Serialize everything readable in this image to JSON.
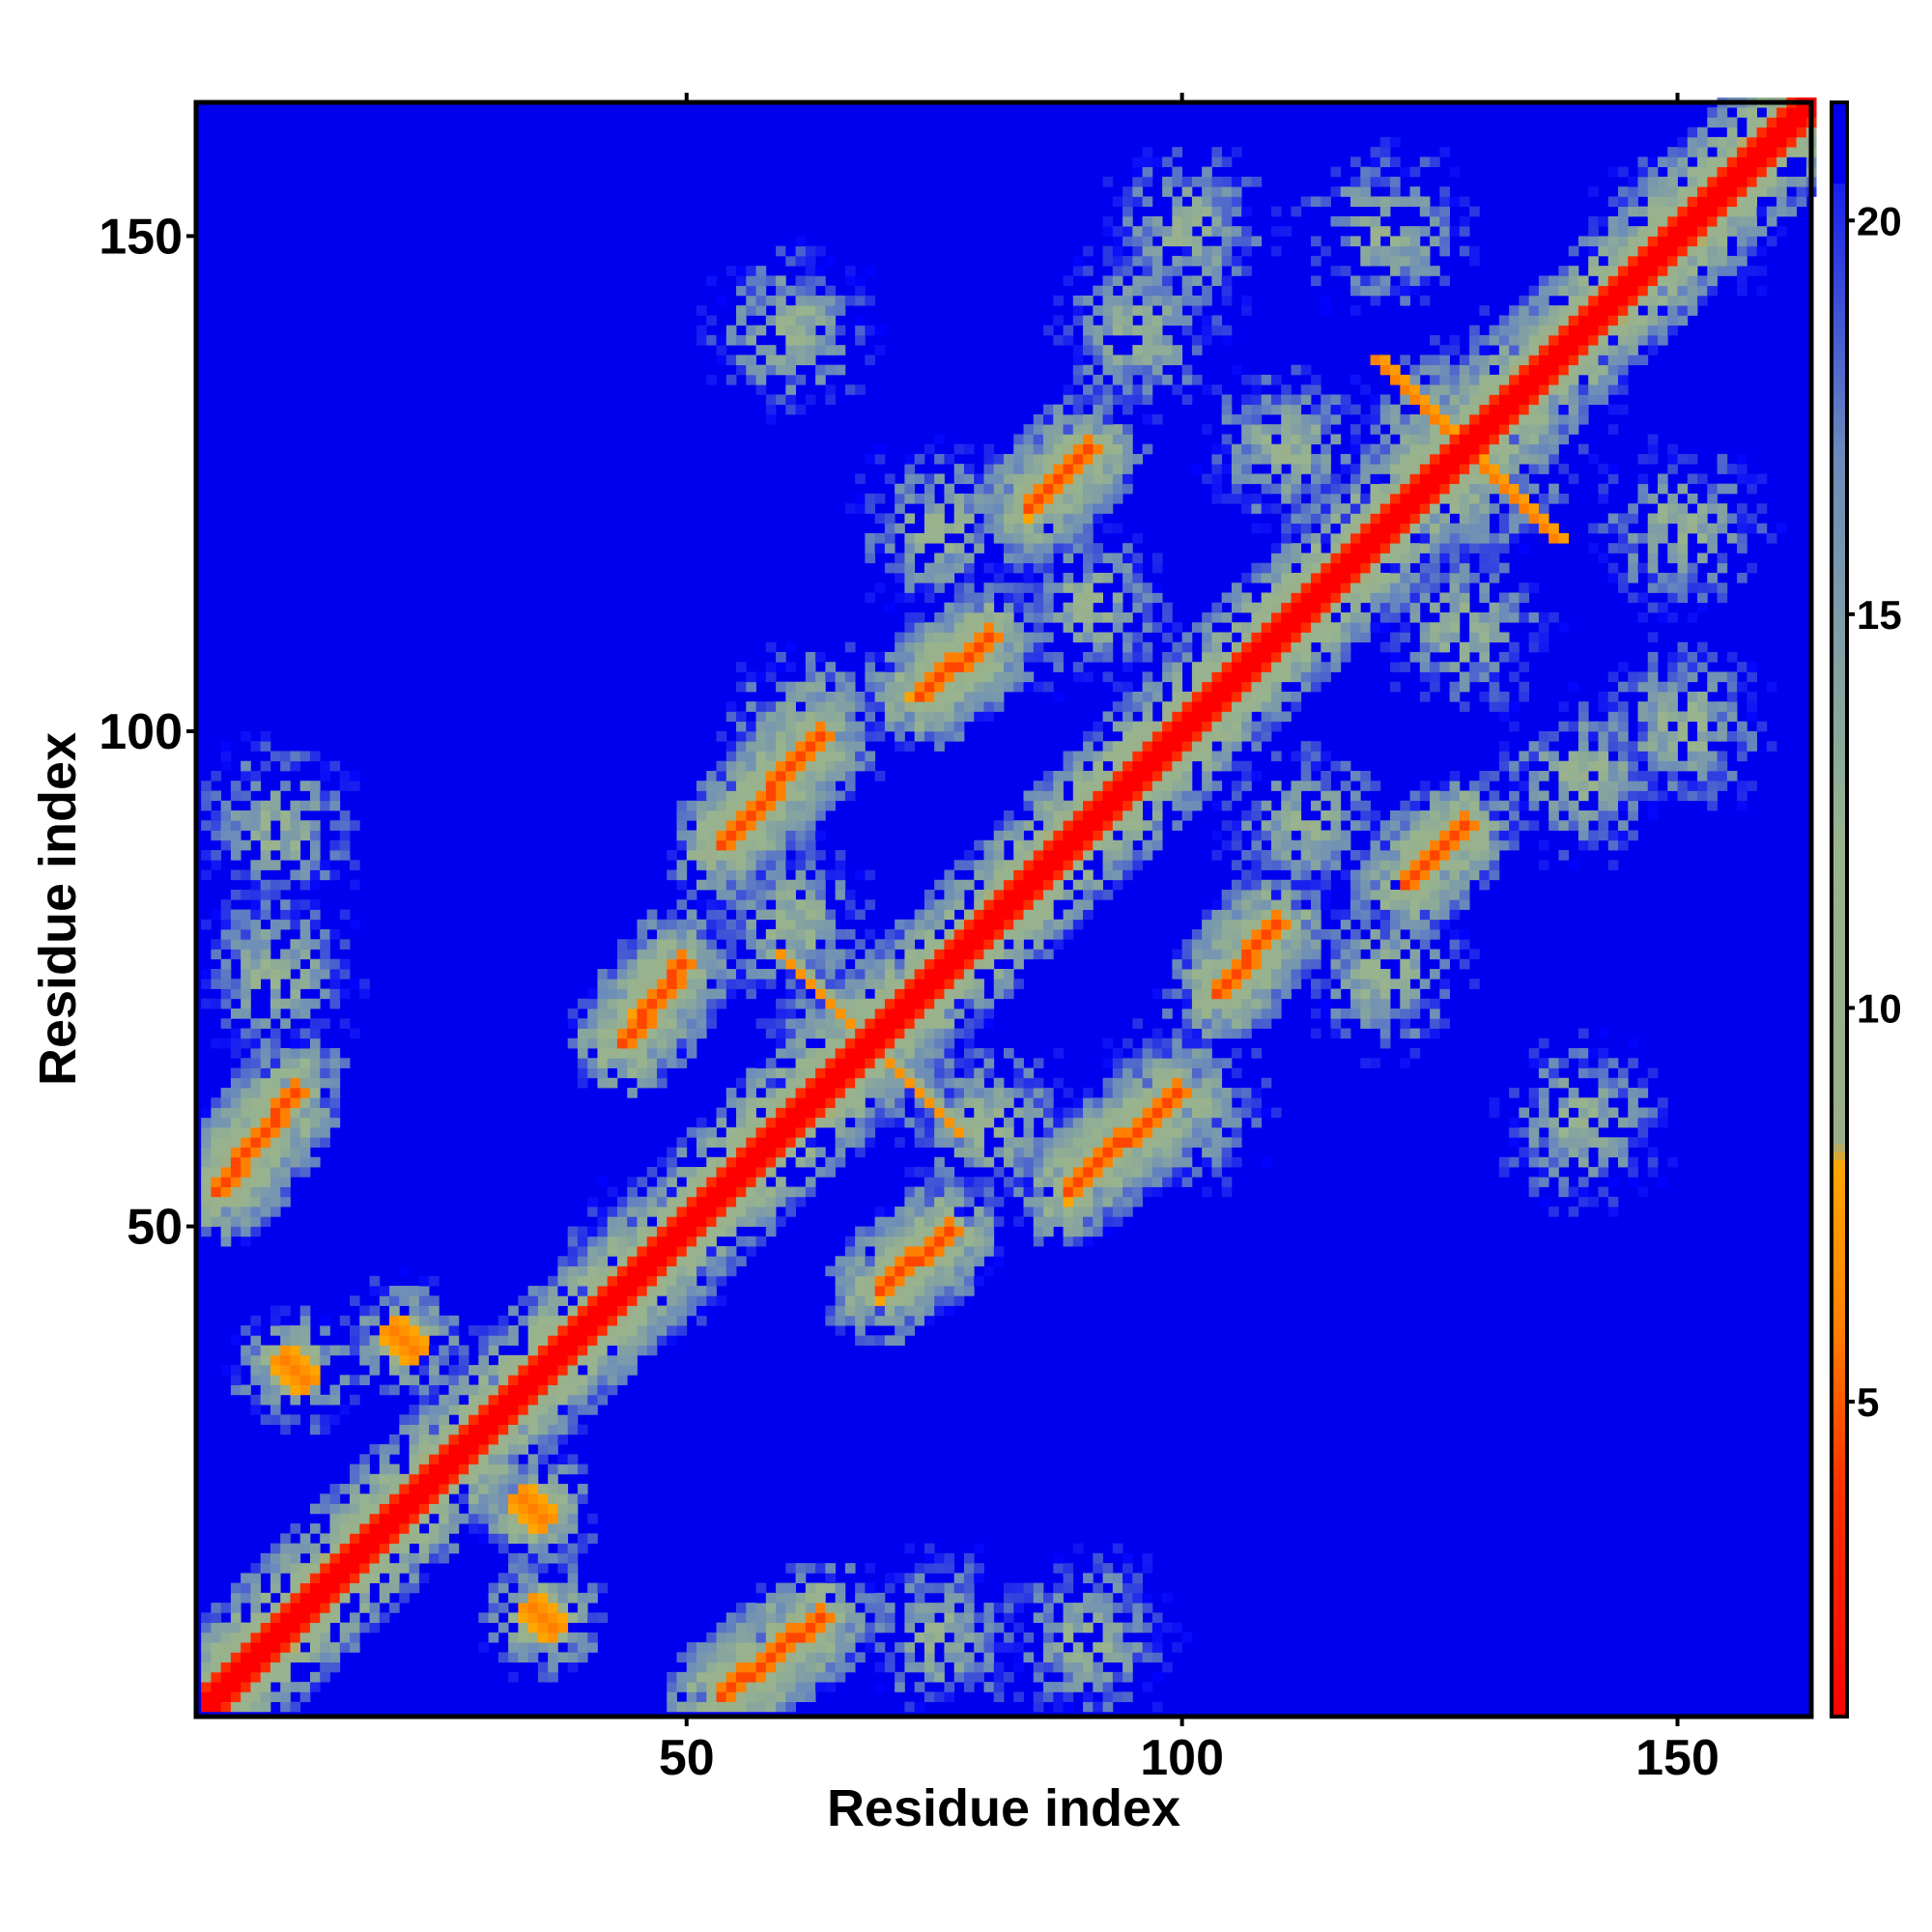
{
  "chart_data": {
    "type": "heatmap",
    "title": "",
    "xlabel": "Residue index",
    "ylabel": "Residue index",
    "n_residues": 163,
    "xlim": [
      1,
      163
    ],
    "ylim": [
      1,
      163
    ],
    "x_ticks": [
      50,
      100,
      150
    ],
    "y_ticks": [
      50,
      100,
      150
    ],
    "x_tick_labels": [
      "50",
      "100",
      "150"
    ],
    "y_tick_labels": [
      "50",
      "100",
      "150"
    ],
    "colorbar": {
      "range": [
        1,
        21.5
      ],
      "ticks": [
        5,
        10,
        15,
        20
      ],
      "tick_labels": [
        "5",
        "10",
        "15",
        "20"
      ],
      "stops": [
        {
          "value": 1,
          "color": "#ff0000"
        },
        {
          "value": 4,
          "color": "#ff3300"
        },
        {
          "value": 6,
          "color": "#ff8000"
        },
        {
          "value": 8,
          "color": "#ffa500"
        },
        {
          "value": 8.3,
          "color": "#9aae8a"
        },
        {
          "value": 12,
          "color": "#98b48e"
        },
        {
          "value": 17,
          "color": "#6c8cba"
        },
        {
          "value": 21.5,
          "color": "#0000ff"
        }
      ]
    },
    "colors": {
      "close": "#ff0000",
      "near": "#ff8800",
      "mid": "#9cb48c",
      "far_mid": "#7090b8",
      "background": "#0000ee"
    },
    "diagonal": {
      "value": 1
    },
    "contact_features": [
      {
        "kind": "antiparallel_strip",
        "x0": 2,
        "y0": 53,
        "x1": 10,
        "y1": 63,
        "value": 6
      },
      {
        "kind": "antiparallel_strip",
        "x0": 43,
        "y0": 68,
        "x1": 49,
        "y1": 76,
        "value": 6
      },
      {
        "kind": "antiparallel_strip",
        "x0": 53,
        "y0": 88,
        "x1": 63,
        "y1": 99,
        "value": 6
      },
      {
        "kind": "antiparallel_strip",
        "x0": 73,
        "y0": 103,
        "x1": 80,
        "y1": 109,
        "value": 6
      },
      {
        "kind": "antiparallel_strip",
        "x0": 84,
        "y0": 122,
        "x1": 90,
        "y1": 128,
        "value": 6
      },
      {
        "kind": "antiparallel_strip",
        "x0": 53,
        "y0": 2,
        "x1": 63,
        "y1": 10,
        "value": 6
      },
      {
        "kind": "antiparallel_strip",
        "x0": 69,
        "y0": 43,
        "x1": 76,
        "y1": 49,
        "value": 6
      },
      {
        "kind": "antiparallel_strip",
        "x0": 88,
        "y0": 53,
        "x1": 99,
        "y1": 63,
        "value": 6
      },
      {
        "kind": "antiparallel_strip",
        "x0": 103,
        "y0": 73,
        "x1": 109,
        "y1": 80,
        "value": 6
      },
      {
        "kind": "antiparallel_strip",
        "x0": 122,
        "y0": 84,
        "x1": 128,
        "y1": 90,
        "value": 6
      },
      {
        "kind": "cluster",
        "x": 10,
        "y": 35,
        "value": 6
      },
      {
        "kind": "cluster",
        "x": 21,
        "y": 38,
        "value": 6
      },
      {
        "kind": "cluster",
        "x": 35,
        "y": 10,
        "value": 6
      },
      {
        "kind": "cluster",
        "x": 34,
        "y": 21,
        "value": 6
      },
      {
        "kind": "cross",
        "x": 128,
        "y": 128,
        "value": 6
      },
      {
        "kind": "cross",
        "x": 68,
        "y": 68,
        "value": 7
      }
    ]
  }
}
